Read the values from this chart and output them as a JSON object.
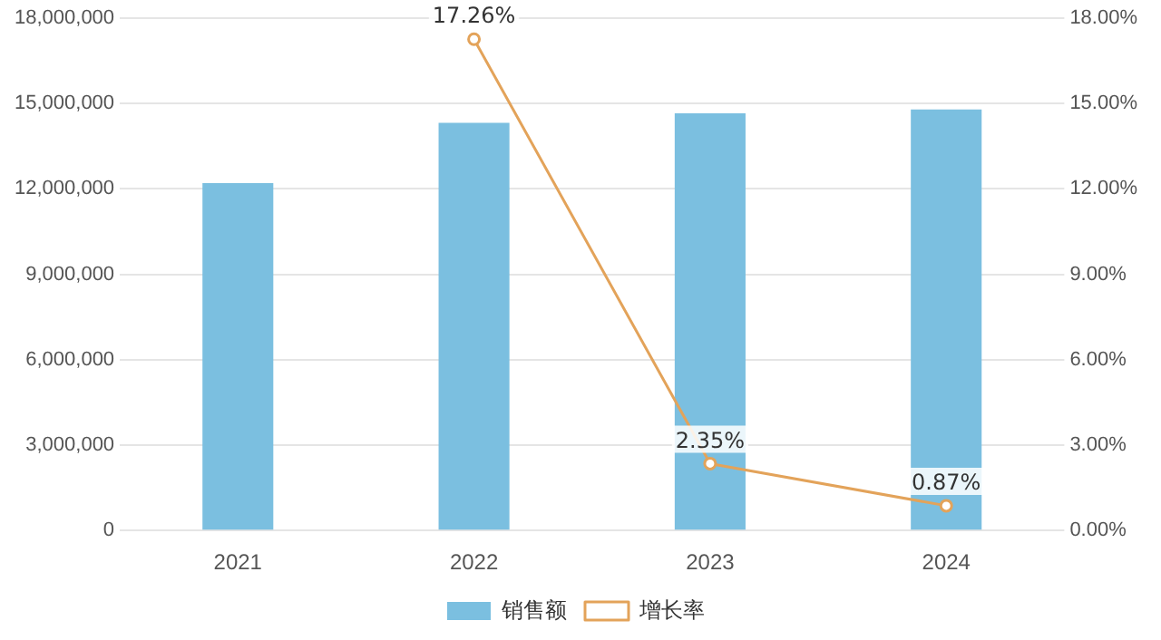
{
  "chart_data": {
    "type": "bar",
    "categories": [
      "2021",
      "2022",
      "2023",
      "2024"
    ],
    "series": [
      {
        "name": "销售额",
        "color": "#7bbfe0",
        "values": [
          12200000,
          14320000,
          14660000,
          14790000
        ]
      },
      {
        "name": "增长率",
        "type": "line",
        "axis": "y2",
        "color": "#e3a35a",
        "marker": "circle",
        "values": [
          null,
          17.26,
          2.35,
          0.87
        ],
        "value_labels": [
          null,
          "17.26%",
          "2.35%",
          "0.87%"
        ]
      }
    ],
    "ylim": [
      0,
      18000000
    ],
    "yticks": [
      {
        "value": 0,
        "label": "0"
      },
      {
        "value": 3000000,
        "label": "3,000,000"
      },
      {
        "value": 6000000,
        "label": "6,000,000"
      },
      {
        "value": 9000000,
        "label": "9,000,000"
      },
      {
        "value": 12000000,
        "label": "12,000,000"
      },
      {
        "value": 15000000,
        "label": "15,000,000"
      },
      {
        "value": 18000000,
        "label": "18,000,000"
      }
    ],
    "y2lim": [
      0,
      18
    ],
    "y2ticks": [
      {
        "value": 0,
        "label": "0.00%"
      },
      {
        "value": 3,
        "label": "3.00%"
      },
      {
        "value": 6,
        "label": "6.00%"
      },
      {
        "value": 9,
        "label": "9.00%"
      },
      {
        "value": 12,
        "label": "12.00%"
      },
      {
        "value": 15,
        "label": "15.00%"
      },
      {
        "value": 18,
        "label": "18.00%"
      }
    ],
    "grid": "y",
    "legend": "bottom"
  }
}
